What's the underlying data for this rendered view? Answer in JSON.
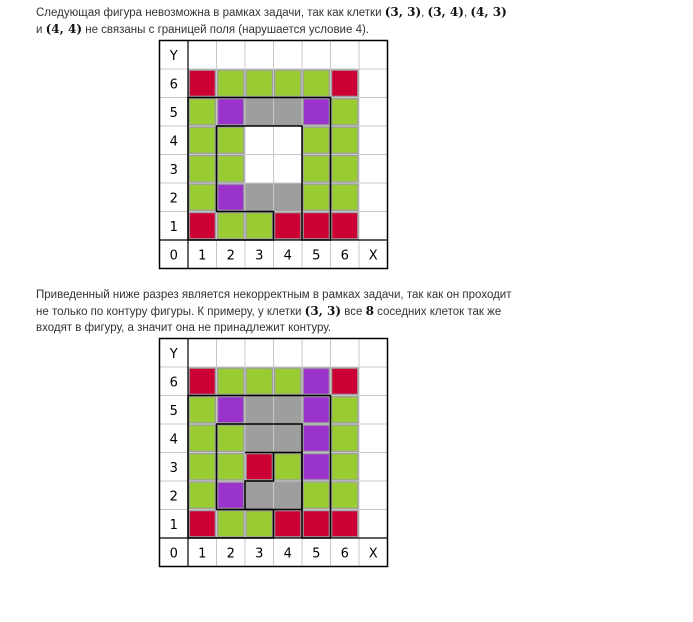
{
  "paragraph1": {
    "t1": "Следующая фигура невозможна в рамках задачи, так как клетки ",
    "c1": "(3, 3)",
    "s1": ", ",
    "c2": "(3, 4)",
    "s2": ", ",
    "c3": "(4, 3)",
    "s3": " и ",
    "c4": "(4, 4)",
    "t2": " не связаны с границей поля (нарушается условие 4)."
  },
  "paragraph2": {
    "t1": "Приведенный ниже разрез является некорректным в рамках задачи, так как он проходит не только по контуру фигуры. К примеру, у клетки ",
    "c1": "(3, 3)",
    "t2": " все ",
    "n1": "8",
    "t3": " соседних клеток так же входят в фигуру, а значит она не принадлежит контуру."
  },
  "colors": {
    "gray": "#9e9e9e",
    "green": "#99cc33",
    "purple": "#9933cc",
    "red": "#cc0033",
    "white": "#ffffff",
    "grid": "#c8c8c8",
    "axis": "#000000"
  },
  "figures": [
    {
      "axis": {
        "y_label": "Y",
        "x_label": "X",
        "x_ticks": [
          "0",
          "1",
          "2",
          "3",
          "4",
          "5",
          "6"
        ],
        "y_ticks": [
          "1",
          "2",
          "3",
          "4",
          "5",
          "6"
        ]
      },
      "gray_cells": [
        [
          1,
          1
        ],
        [
          2,
          1
        ],
        [
          3,
          1
        ],
        [
          4,
          1
        ],
        [
          5,
          1
        ],
        [
          6,
          1
        ],
        [
          1,
          2
        ],
        [
          2,
          2
        ],
        [
          3,
          2
        ],
        [
          4,
          2
        ],
        [
          5,
          2
        ],
        [
          6,
          2
        ],
        [
          1,
          3
        ],
        [
          2,
          3
        ],
        [
          5,
          3
        ],
        [
          6,
          3
        ],
        [
          1,
          4
        ],
        [
          2,
          4
        ],
        [
          5,
          4
        ],
        [
          6,
          4
        ],
        [
          1,
          5
        ],
        [
          2,
          5
        ],
        [
          3,
          5
        ],
        [
          4,
          5
        ],
        [
          5,
          5
        ],
        [
          6,
          5
        ],
        [
          1,
          6
        ],
        [
          2,
          6
        ],
        [
          3,
          6
        ],
        [
          4,
          6
        ],
        [
          5,
          6
        ],
        [
          6,
          6
        ]
      ],
      "path": [
        [
          1,
          1
        ],
        [
          1,
          6
        ],
        [
          6,
          6
        ],
        [
          6,
          1
        ],
        [
          5,
          1
        ],
        [
          5,
          5
        ],
        [
          2,
          5
        ],
        [
          2,
          2
        ],
        [
          4,
          2
        ],
        [
          4,
          1
        ],
        [
          1,
          1
        ]
      ],
      "colored_cells": [
        {
          "cell": [
            1,
            6
          ],
          "color": "red"
        },
        {
          "cell": [
            2,
            6
          ],
          "color": "green"
        },
        {
          "cell": [
            3,
            6
          ],
          "color": "green"
        },
        {
          "cell": [
            4,
            6
          ],
          "color": "green"
        },
        {
          "cell": [
            5,
            6
          ],
          "color": "green"
        },
        {
          "cell": [
            6,
            6
          ],
          "color": "red"
        },
        {
          "cell": [
            1,
            5
          ],
          "color": "green"
        },
        {
          "cell": [
            2,
            5
          ],
          "color": "purple"
        },
        {
          "cell": [
            5,
            5
          ],
          "color": "purple"
        },
        {
          "cell": [
            6,
            5
          ],
          "color": "green"
        },
        {
          "cell": [
            1,
            4
          ],
          "color": "green"
        },
        {
          "cell": [
            2,
            4
          ],
          "color": "green"
        },
        {
          "cell": [
            5,
            4
          ],
          "color": "green"
        },
        {
          "cell": [
            6,
            4
          ],
          "color": "green"
        },
        {
          "cell": [
            1,
            3
          ],
          "color": "green"
        },
        {
          "cell": [
            2,
            3
          ],
          "color": "green"
        },
        {
          "cell": [
            5,
            3
          ],
          "color": "green"
        },
        {
          "cell": [
            6,
            3
          ],
          "color": "green"
        },
        {
          "cell": [
            1,
            2
          ],
          "color": "green"
        },
        {
          "cell": [
            2,
            2
          ],
          "color": "purple"
        },
        {
          "cell": [
            5,
            2
          ],
          "color": "green"
        },
        {
          "cell": [
            6,
            2
          ],
          "color": "green"
        },
        {
          "cell": [
            1,
            1
          ],
          "color": "red"
        },
        {
          "cell": [
            2,
            1
          ],
          "color": "green"
        },
        {
          "cell": [
            3,
            1
          ],
          "color": "green"
        },
        {
          "cell": [
            4,
            1
          ],
          "color": "red"
        },
        {
          "cell": [
            5,
            1
          ],
          "color": "red"
        },
        {
          "cell": [
            6,
            1
          ],
          "color": "red"
        }
      ]
    },
    {
      "axis": {
        "y_label": "Y",
        "x_label": "X",
        "x_ticks": [
          "0",
          "1",
          "2",
          "3",
          "4",
          "5",
          "6"
        ],
        "y_ticks": [
          "1",
          "2",
          "3",
          "4",
          "5",
          "6"
        ]
      },
      "gray_cells": [
        [
          1,
          1
        ],
        [
          2,
          1
        ],
        [
          3,
          1
        ],
        [
          4,
          1
        ],
        [
          5,
          1
        ],
        [
          6,
          1
        ],
        [
          1,
          2
        ],
        [
          2,
          2
        ],
        [
          3,
          2
        ],
        [
          4,
          2
        ],
        [
          5,
          2
        ],
        [
          6,
          2
        ],
        [
          1,
          3
        ],
        [
          2,
          3
        ],
        [
          3,
          3
        ],
        [
          4,
          3
        ],
        [
          5,
          3
        ],
        [
          6,
          3
        ],
        [
          1,
          4
        ],
        [
          2,
          4
        ],
        [
          3,
          4
        ],
        [
          4,
          4
        ],
        [
          5,
          4
        ],
        [
          6,
          4
        ],
        [
          1,
          5
        ],
        [
          2,
          5
        ],
        [
          3,
          5
        ],
        [
          4,
          5
        ],
        [
          5,
          5
        ],
        [
          6,
          5
        ],
        [
          1,
          6
        ],
        [
          2,
          6
        ],
        [
          3,
          6
        ],
        [
          4,
          6
        ],
        [
          5,
          6
        ],
        [
          6,
          6
        ]
      ],
      "path": [
        [
          1,
          1
        ],
        [
          1,
          6
        ],
        [
          6,
          6
        ],
        [
          6,
          1
        ],
        [
          5,
          1
        ],
        [
          5,
          5
        ],
        [
          2,
          5
        ],
        [
          2,
          2
        ],
        [
          4,
          2
        ],
        [
          4,
          1
        ],
        [
          1,
          1
        ]
      ],
      "inner_path": [
        [
          3,
          4
        ],
        [
          5,
          4
        ],
        [
          5,
          2
        ],
        [
          3,
          2
        ],
        [
          3,
          3
        ],
        [
          4,
          3
        ],
        [
          4,
          4
        ]
      ],
      "colored_cells": [
        {
          "cell": [
            1,
            6
          ],
          "color": "red"
        },
        {
          "cell": [
            2,
            6
          ],
          "color": "green"
        },
        {
          "cell": [
            3,
            6
          ],
          "color": "green"
        },
        {
          "cell": [
            4,
            6
          ],
          "color": "green"
        },
        {
          "cell": [
            5,
            6
          ],
          "color": "purple"
        },
        {
          "cell": [
            6,
            6
          ],
          "color": "red"
        },
        {
          "cell": [
            1,
            5
          ],
          "color": "green"
        },
        {
          "cell": [
            2,
            5
          ],
          "color": "purple"
        },
        {
          "cell": [
            5,
            5
          ],
          "color": "purple"
        },
        {
          "cell": [
            6,
            5
          ],
          "color": "green"
        },
        {
          "cell": [
            1,
            4
          ],
          "color": "green"
        },
        {
          "cell": [
            2,
            4
          ],
          "color": "green"
        },
        {
          "cell": [
            5,
            4
          ],
          "color": "purple"
        },
        {
          "cell": [
            6,
            4
          ],
          "color": "green"
        },
        {
          "cell": [
            1,
            3
          ],
          "color": "green"
        },
        {
          "cell": [
            2,
            3
          ],
          "color": "green"
        },
        {
          "cell": [
            3,
            3
          ],
          "color": "red"
        },
        {
          "cell": [
            4,
            3
          ],
          "color": "green"
        },
        {
          "cell": [
            5,
            3
          ],
          "color": "purple"
        },
        {
          "cell": [
            6,
            3
          ],
          "color": "green"
        },
        {
          "cell": [
            1,
            2
          ],
          "color": "green"
        },
        {
          "cell": [
            2,
            2
          ],
          "color": "purple"
        },
        {
          "cell": [
            5,
            2
          ],
          "color": "green"
        },
        {
          "cell": [
            6,
            2
          ],
          "color": "green"
        },
        {
          "cell": [
            1,
            1
          ],
          "color": "red"
        },
        {
          "cell": [
            2,
            1
          ],
          "color": "green"
        },
        {
          "cell": [
            3,
            1
          ],
          "color": "green"
        },
        {
          "cell": [
            4,
            1
          ],
          "color": "red"
        },
        {
          "cell": [
            5,
            1
          ],
          "color": "red"
        },
        {
          "cell": [
            6,
            1
          ],
          "color": "red"
        }
      ]
    }
  ]
}
